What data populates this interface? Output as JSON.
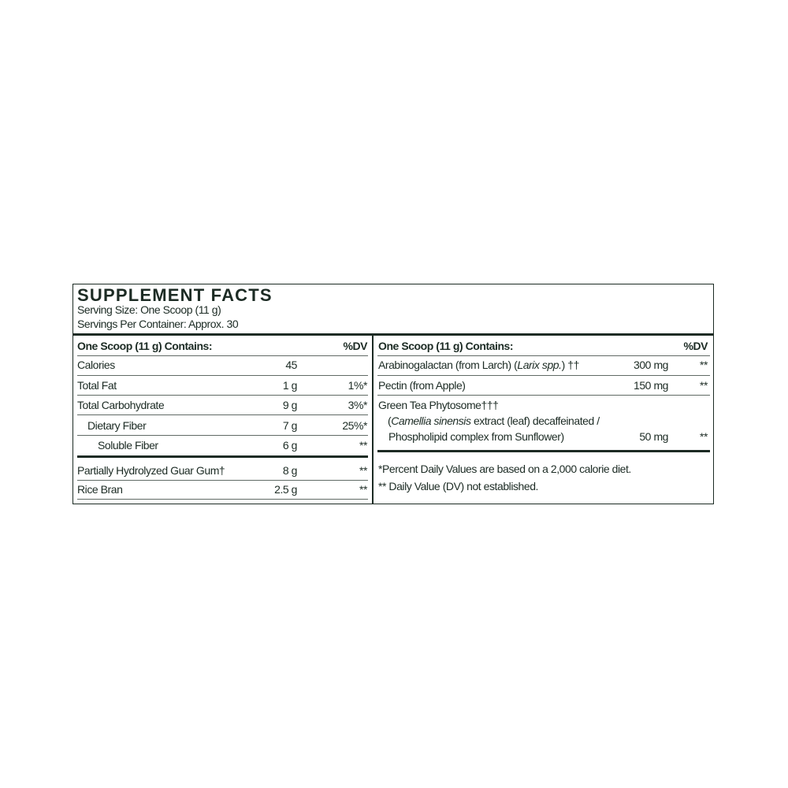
{
  "title": "SUPPLEMENT FACTS",
  "serving_size": "Serving Size: One Scoop (11 g)",
  "servings_per_container": "Servings Per Container: Approx. 30",
  "left": {
    "header": "One Scoop (11 g) Contains:",
    "dv_header": "%DV",
    "rows": [
      {
        "name": "Calories",
        "amount": "45",
        "dv": ""
      },
      {
        "name": "Total Fat",
        "amount": "1 g",
        "dv": "1%*"
      },
      {
        "name": "Total Carbohydrate",
        "amount": "9 g",
        "dv": "3%*"
      },
      {
        "name": "Dietary Fiber",
        "amount": "7 g",
        "dv": "25%*"
      },
      {
        "name": "Soluble Fiber",
        "amount": "6 g",
        "dv": "**"
      },
      {
        "name": "Partially Hydrolyzed Guar Gum†",
        "amount": "8 g",
        "dv": "**"
      },
      {
        "name": "Rice Bran",
        "amount": "2.5 g",
        "dv": "**"
      }
    ]
  },
  "right": {
    "header": "One Scoop (11 g) Contains:",
    "dv_header": "%DV",
    "arabinogalactan": {
      "pre": "Arabinogalactan (from Larch) (",
      "italic": "Larix spp.",
      "post": ") ††",
      "amount": "300 mg",
      "dv": "**"
    },
    "pectin": {
      "name": "Pectin (from Apple)",
      "amount": "150 mg",
      "dv": "**"
    },
    "green_tea": {
      "line1": "Green Tea Phytosome†††",
      "line2_pre": "(",
      "line2_italic": "Camellia sinensis",
      "line2_post": " extract (leaf) decaffeinated /",
      "line3": "Phospholipid complex from Sunflower)",
      "amount": "50 mg",
      "dv": "**"
    },
    "footnotes": [
      "*Percent Daily Values are based on a 2,000 calorie diet.",
      "** Daily Value (DV) not established."
    ]
  }
}
